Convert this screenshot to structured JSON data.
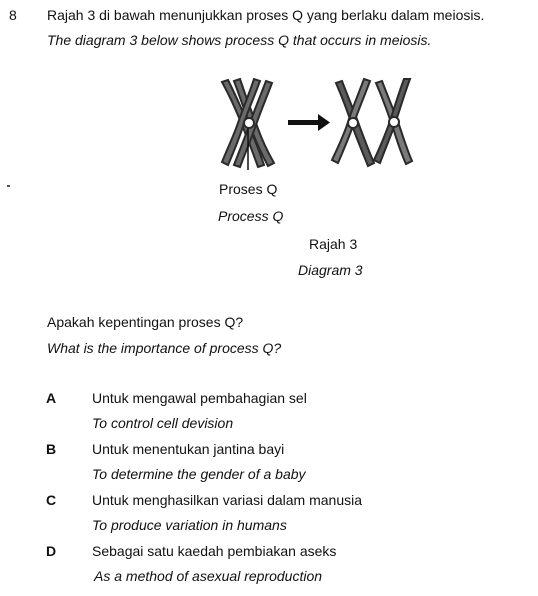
{
  "question": {
    "number": "8",
    "stem_ms": "Rajah 3 di bawah menunjukkan proses Q yang berlaku dalam meiosis.",
    "stem_en": "The diagram 3 below shows process Q that occurs in meiosis."
  },
  "diagram": {
    "label_ms": "Proses Q",
    "label_en": "Process Q",
    "caption_ms": "Rajah 3",
    "caption_en": "Diagram 3",
    "arrow_icon": "right-arrow-icon",
    "chromosome_color": "#3a3a3a"
  },
  "prompt": {
    "ms": "Apakah kepentingan proses Q?",
    "en": "What is the importance of process Q?"
  },
  "options": [
    {
      "letter": "A",
      "ms": "Untuk mengawal pembahagian sel",
      "en": "To control cell devision"
    },
    {
      "letter": "B",
      "ms": "Untuk menentukan jantina bayi",
      "en": "To determine the gender of a baby"
    },
    {
      "letter": "C",
      "ms": "Untuk menghasilkan variasi dalam manusia",
      "en": "To produce variation in humans"
    },
    {
      "letter": "D",
      "ms": "Sebagai satu kaedah pembiakan aseks",
      "en": "As a method of asexual reproduction"
    }
  ]
}
